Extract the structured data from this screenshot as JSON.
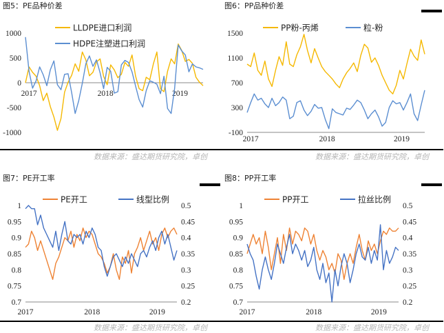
{
  "source_text": "数据来源：盛达期货研究院，卓创",
  "colors": {
    "orange": "#F5B800",
    "blue": "#5B8ED1",
    "orange2": "#EE8233",
    "blue2": "#4472C4"
  },
  "chart_data": [
    {
      "id": "pe-spread",
      "panel_title": "图5：PE品种价差",
      "type": "line",
      "x_ticks": [
        "2017",
        "2018",
        "2019"
      ],
      "ylim": [
        -1000,
        1000
      ],
      "y_ticks": [
        "1000",
        "500",
        "0",
        "-500",
        "-1000"
      ],
      "grid": false,
      "legend": "top",
      "series": [
        {
          "name": "LLDPE进口利润",
          "axis": "left",
          "color": "#F5B800",
          "values": [
            0,
            320,
            210,
            130,
            -60,
            -360,
            -210,
            -480,
            -690,
            -960,
            -720,
            -190,
            10,
            150,
            380,
            230,
            620,
            460,
            140,
            210,
            420,
            480,
            130,
            -40,
            360,
            260,
            100,
            170,
            410,
            330,
            560,
            130,
            -120,
            -160,
            110,
            60,
            380,
            620,
            -120,
            -180,
            230,
            480,
            380,
            780,
            650,
            430,
            470,
            390,
            110,
            10,
            -60
          ]
        },
        {
          "name": "HDPE注塑进口利润",
          "axis": "left",
          "color": "#5B8ED1",
          "values": [
            920,
            230,
            -110,
            40,
            320,
            160,
            -60,
            260,
            440,
            -40,
            -140,
            170,
            180,
            -200,
            -620,
            -360,
            -10,
            380,
            540,
            330,
            460,
            200,
            -120,
            310,
            230,
            -210,
            -180,
            360,
            450,
            410,
            220,
            -70,
            -340,
            -490,
            -160,
            40,
            10,
            -30,
            -220,
            130,
            -520,
            -620,
            -110,
            760,
            640,
            560,
            220,
            380,
            320,
            300,
            270
          ]
        }
      ]
    },
    {
      "id": "pp-spread",
      "panel_title": "图6：PP品种价差",
      "type": "line",
      "x_ticks": [
        "2017",
        "2018",
        "2019"
      ],
      "ylim": [
        -100,
        1500
      ],
      "y_ticks": [
        "1500",
        "1100",
        "700",
        "300",
        "-100"
      ],
      "grid": false,
      "legend": "top",
      "series": [
        {
          "name": "PP粉-丙烯",
          "axis": "left",
          "color": "#F5B800",
          "values": [
            1000,
            960,
            1180,
            900,
            820,
            1050,
            760,
            640,
            900,
            1120,
            980,
            1360,
            1000,
            960,
            1150,
            1280,
            1480,
            1220,
            1020,
            1250,
            1100,
            960,
            880,
            820,
            760,
            680,
            620,
            760,
            860,
            930,
            1020,
            880,
            1140,
            1320,
            1260,
            1030,
            1100,
            980,
            820,
            700,
            580,
            520,
            660,
            900,
            760,
            1010,
            1240,
            1130,
            1060,
            1390,
            1160
          ]
        },
        {
          "name": "粒-粉",
          "axis": "left",
          "color": "#5B8ED1",
          "values": [
            220,
            380,
            520,
            420,
            450,
            360,
            300,
            450,
            330,
            380,
            470,
            420,
            120,
            160,
            380,
            410,
            260,
            170,
            240,
            350,
            290,
            300,
            110,
            -40,
            280,
            220,
            200,
            180,
            290,
            270,
            340,
            420,
            380,
            260,
            120,
            200,
            260,
            150,
            0,
            60,
            300,
            410,
            360,
            380,
            260,
            380,
            520,
            200,
            90,
            340,
            580
          ]
        }
      ]
    },
    {
      "id": "pe-operating-rate",
      "panel_title": "图7：PE开工率",
      "type": "line",
      "x_ticks": [
        "2017",
        "2018",
        "2019"
      ],
      "ylim": [
        0.7,
        1
      ],
      "y_ticks": [
        "1",
        "0.95",
        "0.9",
        "0.85",
        "0.8",
        "0.75",
        "0.7"
      ],
      "ylim_right": [
        0.2,
        0.5
      ],
      "y_ticks_right": [
        "0.5",
        "0.45",
        "0.4",
        "0.35",
        "0.3",
        "0.25",
        "0.2"
      ],
      "grid": false,
      "legend": "top",
      "series": [
        {
          "name": "PE开工",
          "axis": "left",
          "color": "#EE8233",
          "values": [
            0.87,
            0.88,
            0.92,
            0.9,
            0.86,
            0.89,
            0.86,
            0.83,
            0.8,
            0.77,
            0.82,
            0.84,
            0.87,
            0.9,
            0.89,
            0.92,
            0.87,
            0.91,
            0.89,
            0.93,
            0.9,
            0.92,
            0.91,
            0.88,
            0.85,
            0.84,
            0.82,
            0.79,
            0.81,
            0.85,
            0.8,
            0.77,
            0.84,
            0.82,
            0.86,
            0.79,
            0.85,
            0.87,
            0.9,
            0.86,
            0.89,
            0.92,
            0.88,
            0.9,
            0.86,
            0.91,
            0.93,
            0.9,
            0.92,
            0.93,
            0.91
          ]
        },
        {
          "name": "线型比例",
          "axis": "right",
          "color": "#4472C4",
          "values": [
            0.49,
            0.5,
            0.49,
            0.49,
            0.44,
            0.47,
            0.43,
            0.41,
            0.39,
            0.37,
            0.42,
            0.36,
            0.41,
            0.45,
            0.39,
            0.38,
            0.41,
            0.4,
            0.41,
            0.38,
            0.42,
            0.4,
            0.43,
            0.41,
            0.37,
            0.36,
            0.31,
            0.28,
            0.31,
            0.34,
            0.35,
            0.33,
            0.31,
            0.34,
            0.32,
            0.35,
            0.33,
            0.31,
            0.35,
            0.36,
            0.34,
            0.37,
            0.39,
            0.36,
            0.4,
            0.42,
            0.38,
            0.41,
            0.37,
            0.33,
            0.36
          ]
        }
      ]
    },
    {
      "id": "pp-operating-rate",
      "panel_title": "图8：PP开工率",
      "type": "line",
      "x_ticks": [
        "2017",
        "2018",
        "2019"
      ],
      "ylim": [
        0.7,
        1
      ],
      "y_ticks": [
        "1",
        "0.95",
        "0.9",
        "0.85",
        "0.8",
        "0.75",
        "0.7"
      ],
      "ylim_right": [
        0.2,
        0.5
      ],
      "y_ticks_right": [
        "0.5",
        "0.45",
        "0.4",
        "0.35",
        "0.3",
        "0.25",
        "0.2"
      ],
      "grid": false,
      "legend": "top",
      "series": [
        {
          "name": "PP开工",
          "axis": "left",
          "color": "#EE8233",
          "values": [
            0.85,
            0.88,
            0.91,
            0.88,
            0.9,
            0.85,
            0.92,
            0.87,
            0.8,
            0.85,
            0.9,
            0.82,
            0.91,
            0.86,
            0.93,
            0.88,
            0.92,
            0.91,
            0.89,
            0.93,
            0.92,
            0.88,
            0.91,
            0.86,
            0.83,
            0.86,
            0.84,
            0.8,
            0.82,
            0.79,
            0.85,
            0.83,
            0.77,
            0.82,
            0.85,
            0.82,
            0.87,
            0.91,
            0.86,
            0.83,
            0.89,
            0.86,
            0.88,
            0.85,
            0.89,
            0.92,
            0.91,
            0.93,
            0.92,
            0.92,
            0.93
          ]
        },
        {
          "name": "拉丝比例",
          "axis": "right",
          "color": "#4472C4",
          "values": [
            0.38,
            0.35,
            0.33,
            0.28,
            0.24,
            0.3,
            0.34,
            0.3,
            0.27,
            0.32,
            0.38,
            0.35,
            0.32,
            0.37,
            0.41,
            0.35,
            0.38,
            0.36,
            0.33,
            0.36,
            0.31,
            0.33,
            0.37,
            0.3,
            0.27,
            0.32,
            0.26,
            0.29,
            0.2,
            0.3,
            0.25,
            0.31,
            0.35,
            0.32,
            0.26,
            0.3,
            0.35,
            0.38,
            0.34,
            0.33,
            0.37,
            0.32,
            0.36,
            0.33,
            0.44,
            0.3,
            0.36,
            0.32,
            0.34,
            0.37,
            0.36
          ]
        }
      ]
    }
  ]
}
